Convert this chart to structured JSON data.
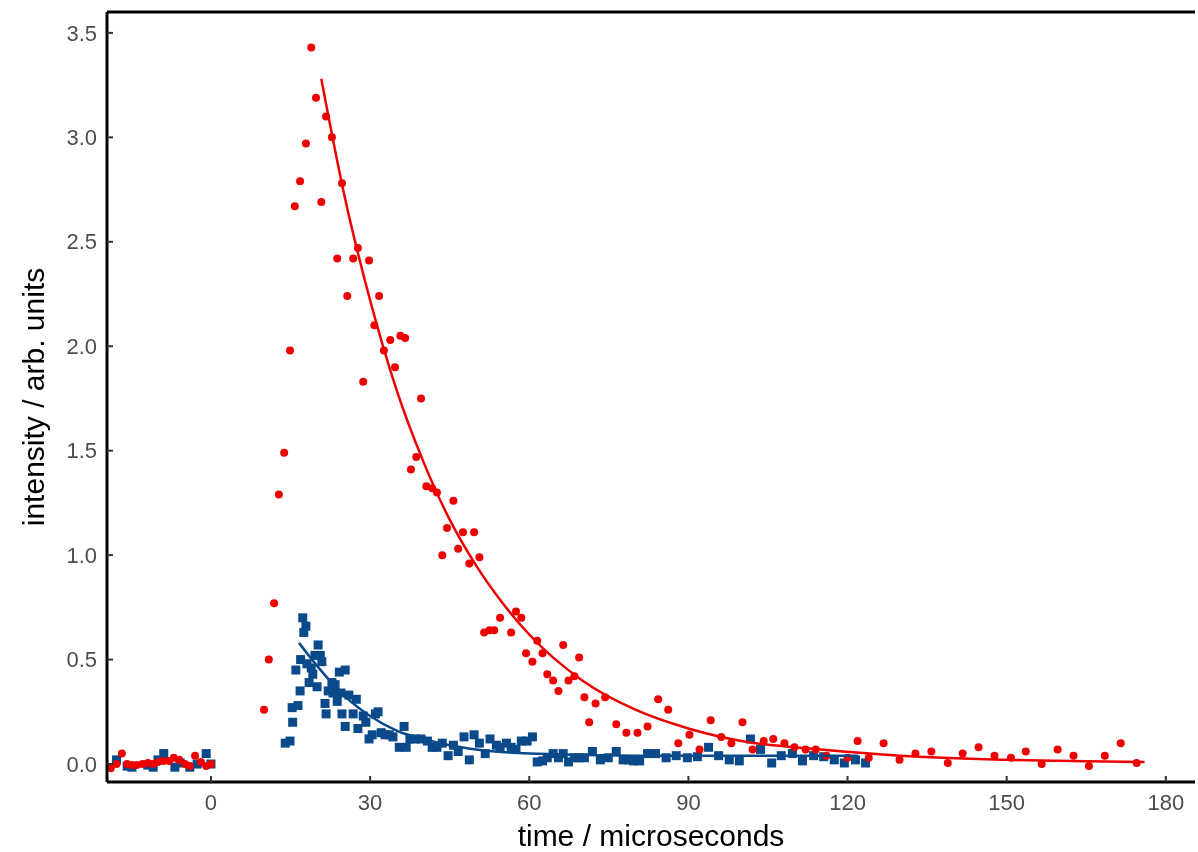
{
  "chart_data": {
    "type": "scatter",
    "xlabel": "time / microseconds",
    "ylabel": "intensity / arb. units",
    "xlim": [
      -19.6,
      185.5
    ],
    "ylim": [
      -0.086,
      3.6
    ],
    "xticks": [
      0,
      30,
      60,
      90,
      120,
      150,
      180
    ],
    "yticks": [
      {
        "value": 0,
        "label": "0.0"
      },
      {
        "value": 0.5,
        "label": "0.5"
      },
      {
        "value": 1,
        "label": "1.0"
      },
      {
        "value": 1.5,
        "label": "1.5"
      },
      {
        "value": 2,
        "label": "2.0"
      },
      {
        "value": 2.5,
        "label": "2.5"
      },
      {
        "value": 3,
        "label": "3.0"
      },
      {
        "value": 3.5,
        "label": "3.5"
      }
    ],
    "grid": false,
    "series": [
      {
        "marker": "square",
        "color": "#0a4a8a",
        "x": [
          -17.8,
          -15.8,
          -14.9,
          -11.9,
          -10.9,
          -10,
          -8.9,
          -6.8,
          -5.8,
          -4,
          -2.6,
          -0.9,
          0,
          14,
          14.9,
          15.4,
          15.3,
          16.4,
          16,
          16.8,
          16.9,
          17.3,
          17.5,
          17.9,
          18.1,
          18.5,
          18.9,
          19.2,
          19.6,
          20.2,
          20.6,
          20.9,
          20,
          21.5,
          21.7,
          22.1,
          22.8,
          23.4,
          23,
          23.8,
          24.2,
          24.5,
          24.7,
          25.3,
          25.3,
          26,
          26.8,
          27.4,
          27.7,
          28.7,
          29.2,
          29.8,
          30.4,
          31,
          31.5,
          32.1,
          32.8,
          33.6,
          34.3,
          35.5,
          36.4,
          36.8,
          37.5,
          38.5,
          39.6,
          40.8,
          41.7,
          42.6,
          43.6,
          44.7,
          45.7,
          46.6,
          47.7,
          48.7,
          49.6,
          50.6,
          51.7,
          52.6,
          53.8,
          54.5,
          55.7,
          56.6,
          57.5,
          58.5,
          59.6,
          60.6,
          61.5,
          62.5,
          63.4,
          64.5,
          65.5,
          66.4,
          67.4,
          68.5,
          69.4,
          70.4,
          71.9,
          73.4,
          74.9,
          76.4,
          77.7,
          78.7,
          79.6,
          80.8,
          82.3,
          83.8,
          85.8,
          87.7,
          89.8,
          91.7,
          93.8,
          95.7,
          97.7,
          99.6,
          101.7,
          103.6,
          105.7,
          107.5,
          109.6,
          111.5,
          113.6,
          115.5,
          117.5,
          119.4,
          121.5,
          123.4
        ],
        "values": [
          0.02,
          -0.01,
          -0.015,
          -0.005,
          -0.015,
          0.02,
          0.05,
          -0.015,
          0.005,
          -0.015,
          0,
          0.05,
          0,
          0.1,
          0.11,
          0.2,
          0.27,
          0.28,
          0.45,
          0.35,
          0.5,
          0.7,
          0.63,
          0.66,
          0.48,
          0.39,
          0.46,
          0.43,
          0.52,
          0.57,
          0.52,
          0.49,
          0.37,
          0.29,
          0.24,
          0.35,
          0.39,
          0.38,
          0.34,
          0.3,
          0.44,
          0.34,
          0.24,
          0.45,
          0.18,
          0.33,
          0.24,
          0.31,
          0.17,
          0.23,
          0.2,
          0.12,
          0.14,
          0.24,
          0.25,
          0.15,
          0.14,
          0.14,
          0.13,
          0.08,
          0.18,
          0.08,
          0.12,
          0.12,
          0.12,
          0.11,
          0.08,
          0.08,
          0.1,
          0.04,
          0.09,
          0.06,
          0.13,
          0.02,
          0.14,
          0.1,
          0.05,
          0.12,
          0.09,
          0.08,
          0.1,
          0.08,
          0.07,
          0.11,
          0.11,
          0.13,
          0.01,
          0.015,
          0.03,
          0.05,
          0.03,
          0.05,
          0.01,
          0.03,
          0.03,
          0.03,
          0.06,
          0.02,
          0.03,
          0.06,
          0.02,
          0.02,
          0.015,
          0.015,
          0.05,
          0.05,
          0.03,
          0.04,
          0.03,
          0.035,
          0.08,
          0.04,
          0.02,
          0.015,
          0.12,
          0.07,
          0.005,
          0.04,
          0.05,
          0.015,
          0.04,
          0.035,
          0.02,
          0.005,
          0.02,
          0.005
        ]
      },
      {
        "marker": "circle",
        "color": "#ee0000",
        "x": [
          -18.9,
          -17.8,
          -16.8,
          -15.8,
          -14.9,
          -14,
          -12.9,
          -11.9,
          -10.9,
          -10,
          -9,
          -7.9,
          -7,
          -6,
          -4.9,
          -4,
          -3,
          -1.9,
          -0.9,
          0,
          10,
          10.9,
          11.9,
          12.8,
          13.8,
          14.9,
          15.8,
          16.8,
          17.9,
          18.9,
          19.8,
          20.8,
          21.7,
          22.8,
          23.8,
          24.7,
          25.7,
          26.8,
          27.7,
          28.7,
          29.8,
          30.8,
          31.7,
          32.6,
          33.8,
          34.7,
          35.7,
          36.6,
          37.7,
          38.7,
          39.6,
          40.6,
          41.7,
          42.6,
          43.6,
          44.5,
          45.7,
          46.6,
          47.5,
          48.7,
          49.6,
          50.6,
          51.5,
          52.5,
          53.4,
          54.5,
          56.6,
          57.5,
          58.5,
          59.4,
          60.6,
          61.5,
          62.5,
          63.4,
          64.5,
          65.5,
          66.4,
          67.4,
          68.5,
          69.4,
          70.4,
          71.3,
          72.5,
          74.3,
          76.4,
          78.3,
          80.4,
          82.3,
          84.3,
          86.2,
          88.1,
          90.2,
          92.1,
          94.2,
          96.2,
          98.1,
          100.2,
          102.1,
          104.2,
          106,
          108.1,
          110,
          112.1,
          114,
          116,
          120,
          121.9,
          124,
          126.8,
          129.8,
          132.8,
          135.8,
          138.9,
          141.7,
          144.7,
          147.7,
          150.8,
          153.6,
          156.6,
          159.6,
          162.6,
          165.5,
          168.5,
          171.5,
          174.5
        ],
        "values": [
          -0.02,
          0,
          0.05,
          0,
          -0.005,
          -0.005,
          0,
          0.005,
          0,
          0.01,
          0.015,
          0.015,
          0.03,
          0.02,
          0,
          -0.01,
          0.04,
          0.01,
          -0.01,
          0,
          0.26,
          0.5,
          0.77,
          1.29,
          1.49,
          1.98,
          2.67,
          2.79,
          2.97,
          3.43,
          3.19,
          2.69,
          3.1,
          3,
          2.42,
          2.78,
          2.24,
          2.42,
          2.47,
          1.83,
          2.41,
          2.1,
          2.24,
          1.98,
          2.03,
          1.9,
          2.05,
          2.04,
          1.41,
          1.47,
          1.75,
          1.33,
          1.32,
          1.3,
          1,
          1.13,
          1.26,
          1.03,
          1.11,
          0.96,
          1.11,
          0.99,
          0.63,
          0.64,
          0.64,
          0.7,
          0.63,
          0.73,
          0.7,
          0.53,
          0.49,
          0.59,
          0.53,
          0.43,
          0.4,
          0.35,
          0.57,
          0.4,
          0.42,
          0.51,
          0.32,
          0.2,
          0.29,
          0.32,
          0.19,
          0.15,
          0.15,
          0.18,
          0.31,
          0.26,
          0.1,
          0.14,
          0.07,
          0.21,
          0.13,
          0.1,
          0.2,
          0.07,
          0.11,
          0.12,
          0.1,
          0.08,
          0.07,
          0.07,
          0.04,
          0.03,
          0.11,
          0.03,
          0.1,
          0.02,
          0.05,
          0.06,
          0.005,
          0.05,
          0.08,
          0.04,
          0.03,
          0.06,
          0,
          0.07,
          0.04,
          -0.01,
          0.04,
          0.1,
          0.005
        ]
      },
      {
        "type": "line",
        "marker": "none",
        "line_style": "solid",
        "color": "#0a4a8a",
        "x": [
          16.6,
          20,
          25,
          30,
          35,
          40,
          45,
          50,
          60,
          80,
          100,
          122
        ],
        "values": [
          0.58,
          0.47,
          0.33,
          0.23,
          0.16,
          0.12,
          0.09,
          0.07,
          0.05,
          0.04,
          0.04,
          0.04
        ]
      },
      {
        "type": "line",
        "marker": "none",
        "line_style": "solid",
        "color": "#ee0000",
        "x": [
          20.8,
          25,
          30,
          35,
          40,
          45,
          50,
          55,
          60,
          70,
          80,
          90,
          100,
          115,
          130,
          150,
          176
        ],
        "values": [
          3.28,
          2.74,
          2.22,
          1.79,
          1.45,
          1.17,
          0.95,
          0.77,
          0.62,
          0.4,
          0.26,
          0.17,
          0.11,
          0.07,
          0.04,
          0.02,
          0.01
        ]
      }
    ]
  }
}
